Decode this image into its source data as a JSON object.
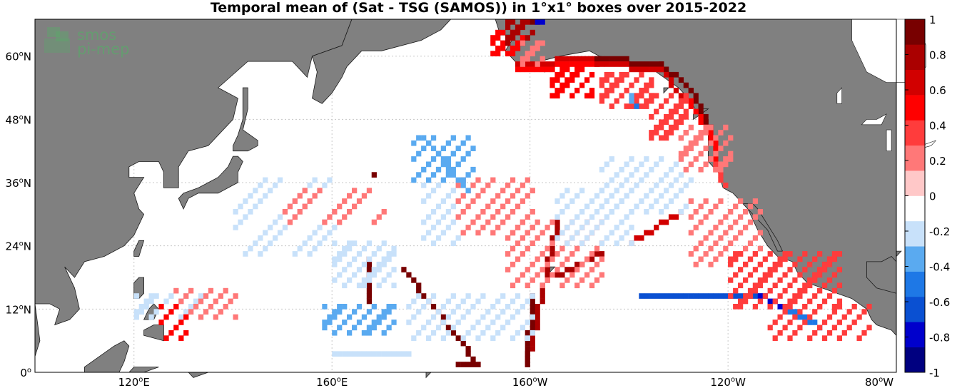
{
  "title": "Temporal mean of (Sat - TSG (SAMOS)) in 1°x1° boxes over 2015-2022",
  "logo": {
    "line1": "smos",
    "line2": "pi-mep",
    "color": "#5aa86a"
  },
  "map": {
    "lon_range": [
      100,
      274
    ],
    "lat_range": [
      0,
      67
    ],
    "land_color": "#808080",
    "ocean_color": "#ffffff",
    "grid": true,
    "lat_ticks": [
      {
        "value": 0,
        "deg": "0",
        "hemi": ""
      },
      {
        "value": 12,
        "deg": "12",
        "hemi": "N"
      },
      {
        "value": 24,
        "deg": "24",
        "hemi": "N"
      },
      {
        "value": 36,
        "deg": "36",
        "hemi": "N"
      },
      {
        "value": 48,
        "deg": "48",
        "hemi": "N"
      },
      {
        "value": 60,
        "deg": "60",
        "hemi": "N"
      }
    ],
    "lon_ticks": [
      {
        "value": 120,
        "deg": "120",
        "hemi": "E"
      },
      {
        "value": 160,
        "deg": "160",
        "hemi": "E"
      },
      {
        "value": 200,
        "deg": "160",
        "hemi": "W"
      },
      {
        "value": 240,
        "deg": "120",
        "hemi": "W"
      },
      {
        "value": 280,
        "deg": "80",
        "hemi": "W"
      }
    ]
  },
  "colorbar": {
    "range": [
      -1,
      1
    ],
    "ticks": [
      "1",
      "0.8",
      "0.6",
      "0.4",
      "0.2",
      "0",
      "-0.2",
      "-0.4",
      "-0.6",
      "-0.8",
      "-1"
    ],
    "colors": [
      "#000080",
      "#0000cc",
      "#0a50d2",
      "#1e78e6",
      "#5aaaf0",
      "#c8e1fa",
      "#ffffff",
      "#ffc8c8",
      "#ff7878",
      "#ff3c3c",
      "#ff0000",
      "#d20000",
      "#aa0000",
      "#780000"
    ]
  }
}
